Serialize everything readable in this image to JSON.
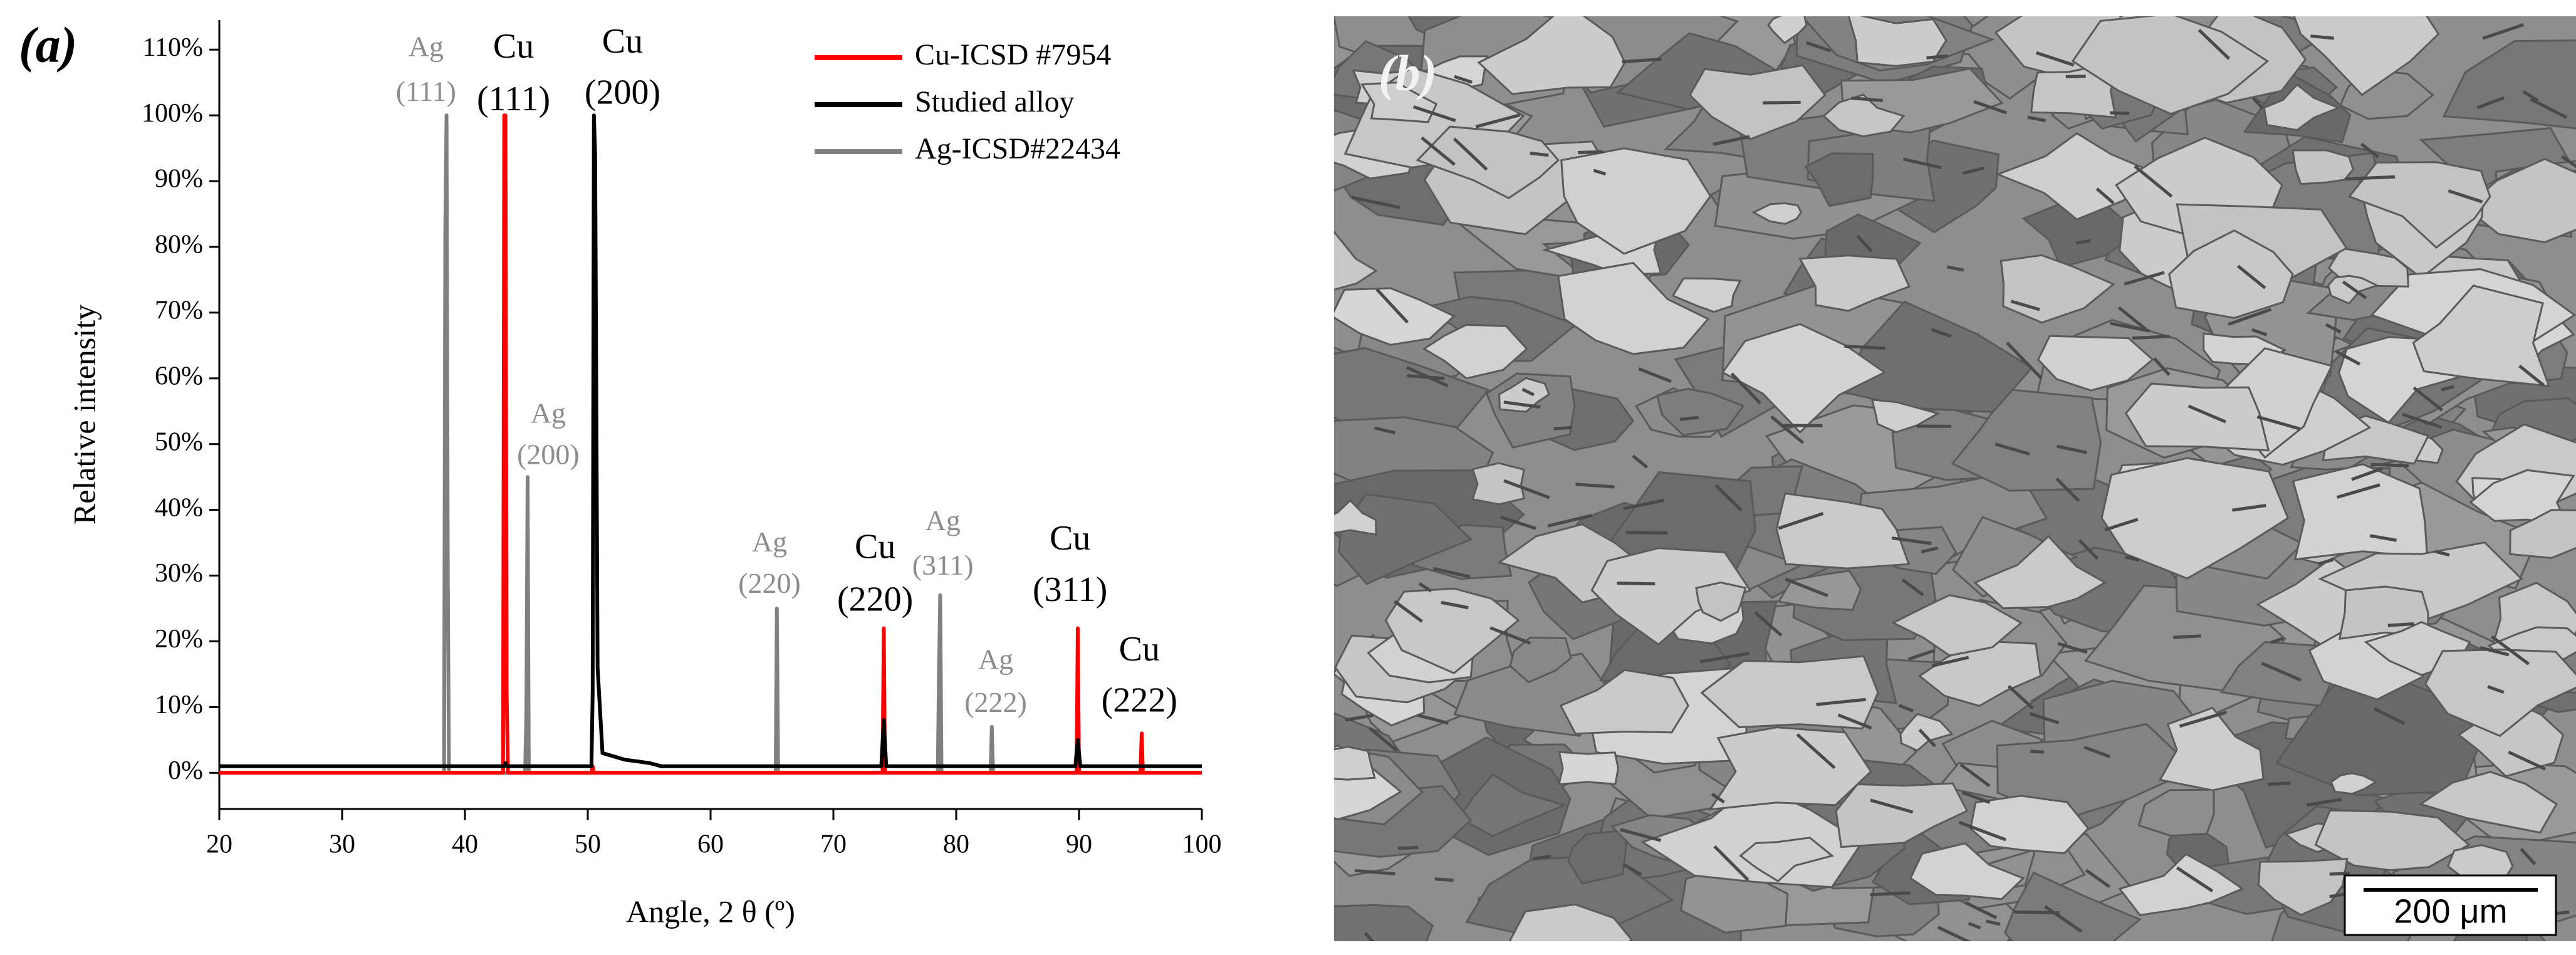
{
  "chart_data": {
    "type": "line",
    "panel_label": "(a)",
    "xlabel": "Angle, 2 θ (º)",
    "ylabel": "Relative intensity",
    "xlim": [
      20,
      100
    ],
    "xticks": [
      20,
      30,
      40,
      50,
      60,
      70,
      80,
      90,
      100
    ],
    "ylim": [
      -5.5,
      114.5
    ],
    "yticks": [
      {
        "value": 0,
        "label": "0%"
      },
      {
        "value": 10,
        "label": "10%"
      },
      {
        "value": 20,
        "label": "20%"
      },
      {
        "value": 30,
        "label": "30%"
      },
      {
        "value": 40,
        "label": "40%"
      },
      {
        "value": 50,
        "label": "50%"
      },
      {
        "value": 60,
        "label": "60%"
      },
      {
        "value": 70,
        "label": "70%"
      },
      {
        "value": 80,
        "label": "80%"
      },
      {
        "value": 90,
        "label": "90%"
      },
      {
        "value": 100,
        "label": "100%"
      },
      {
        "value": 110,
        "label": "110%"
      }
    ],
    "legend": "upper right",
    "series": [
      {
        "name": "Cu-ICSD #7954",
        "color": "#ff0000",
        "x": [
          20,
          43.1,
          43.2,
          43.3,
          43.4,
          43.5,
          50.3,
          50.4,
          50.5,
          74.0,
          74.1,
          74.2,
          89.8,
          89.9,
          90.0,
          95.0,
          95.1,
          95.2,
          100
        ],
        "values": [
          0,
          0,
          100,
          100,
          12,
          0,
          0,
          1,
          0,
          0,
          22,
          0,
          0,
          22,
          0,
          0,
          6,
          0,
          0
        ]
      },
      {
        "name": "Studied alloy",
        "color": "#000000",
        "x": [
          20,
          43.2,
          43.3,
          43.4,
          50.3,
          50.4,
          50.5,
          50.6,
          50.8,
          51.2,
          53,
          55,
          56,
          73.9,
          74.1,
          74.3,
          89.7,
          89.9,
          90.1,
          100
        ],
        "values": [
          1,
          1,
          1.5,
          1,
          1,
          12,
          100,
          94,
          16,
          3,
          2,
          1.5,
          1,
          1,
          8,
          1,
          1,
          5,
          1,
          1
        ]
      },
      {
        "name": "Ag-ICSD#22434",
        "color": "#808080",
        "x": [
          20,
          38.3,
          38.4,
          38.5,
          38.6,
          38.7,
          44.9,
          45.0,
          45.1,
          45.2,
          65.3,
          65.4,
          65.5,
          78.5,
          78.6,
          78.7,
          78.8,
          82.8,
          82.9,
          83.0,
          100
        ],
        "values": [
          0,
          0,
          82,
          100,
          31,
          0,
          0,
          9,
          45,
          0,
          0,
          25,
          0,
          0,
          16,
          27,
          0,
          0,
          7,
          0,
          0
        ]
      }
    ],
    "annotations": [
      {
        "lines": [
          "Ag",
          "(111)"
        ],
        "color": "#8c8c8c"
      },
      {
        "lines": [
          "Cu",
          "(111)"
        ],
        "color": "#000000"
      },
      {
        "lines": [
          "Cu",
          "(200)"
        ],
        "color": "#000000"
      },
      {
        "lines": [
          "Ag",
          "(200)"
        ],
        "color": "#8c8c8c"
      },
      {
        "lines": [
          "Ag",
          "(220)"
        ],
        "color": "#8c8c8c"
      },
      {
        "lines": [
          "Cu",
          "(220)"
        ],
        "color": "#000000"
      },
      {
        "lines": [
          "Ag",
          "(311)"
        ],
        "color": "#8c8c8c"
      },
      {
        "lines": [
          "Ag",
          "(222)"
        ],
        "color": "#8c8c8c"
      },
      {
        "lines": [
          "Cu",
          "(311)"
        ],
        "color": "#000000"
      },
      {
        "lines": [
          "Cu",
          "(222)"
        ],
        "color": "#000000"
      }
    ]
  },
  "micrograph": {
    "panel_label": "(b)",
    "scale_bar": "200 μm"
  }
}
